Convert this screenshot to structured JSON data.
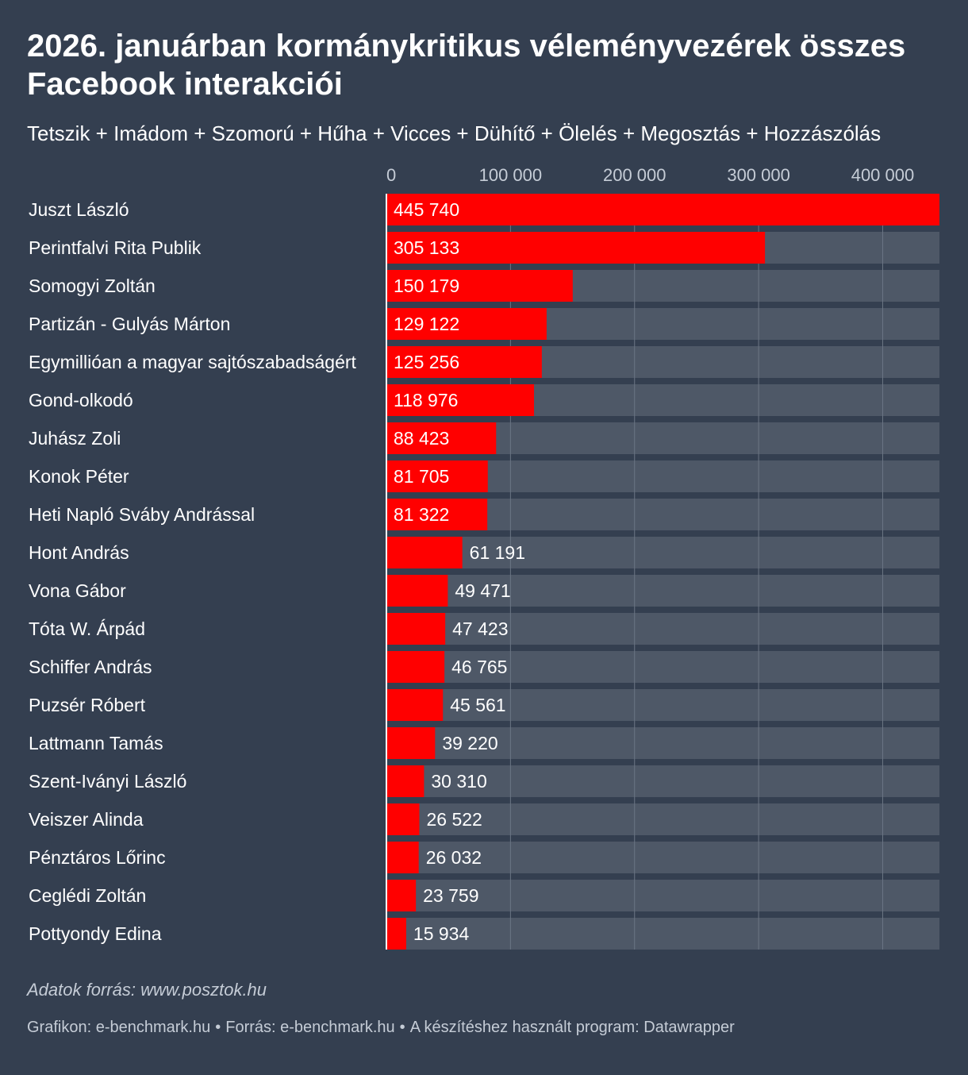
{
  "header": {
    "title": "2026. januárban kormánykritikus véleményvezérek összes Facebook interakciói",
    "subtitle": "Tetszik + Imádom + Szomorú + Hűha + Vicces + Dühítő + Ölelés + Megosztás + Hozzászólás"
  },
  "colors": {
    "background": "#343f50",
    "bar": "#ff0000",
    "track": "#4e5867",
    "gridline": "#6b7584",
    "axis_text": "#c5ccd6"
  },
  "chart_data": {
    "type": "bar",
    "orientation": "horizontal",
    "title": "2026. januárban kormánykritikus véleményvezérek összes Facebook interakciói",
    "xlabel": "",
    "ylabel": "",
    "xlim": [
      0,
      445740
    ],
    "ticks": [
      0,
      100000,
      200000,
      300000,
      400000
    ],
    "tick_labels": [
      "0",
      "100 000",
      "200 000",
      "300 000",
      "400 000"
    ],
    "categories": [
      "Juszt László",
      "Perintfalvi Rita Publik",
      "Somogyi Zoltán",
      "Partizán - Gulyás Márton",
      "Egymillióan a magyar sajtószabadságért",
      "Gond-olkodó",
      "Juhász Zoli",
      "Konok Péter",
      "Heti Napló Sváby Andrással",
      "Hont András",
      "Vona Gábor",
      "Tóta W. Árpád",
      "Schiffer András",
      "Puzsér Róbert",
      "Lattmann Tamás",
      "Szent-Iványi László",
      "Veiszer Alinda",
      "Pénztáros Lőrinc",
      "Ceglédi Zoltán",
      "Pottyondy Edina"
    ],
    "values": [
      445740,
      305133,
      150179,
      129122,
      125256,
      118976,
      88423,
      81705,
      81322,
      61191,
      49471,
      47423,
      46765,
      45561,
      39220,
      30310,
      26522,
      26032,
      23759,
      15934
    ],
    "value_labels": [
      "445 740",
      "305 133",
      "150 179",
      "129 122",
      "125 256",
      "118 976",
      "88 423",
      "81 705",
      "81 322",
      "61 191",
      "49 471",
      "47 423",
      "46 765",
      "45 561",
      "39 220",
      "30 310",
      "26 522",
      "26 032",
      "23 759",
      "15 934"
    ]
  },
  "notes": {
    "source_note": "Adatok forrás: www.posztok.hu"
  },
  "footer": {
    "graphic": "Grafikon: e-benchmark.hu",
    "source": "Forrás: e-benchmark.hu",
    "program": "A készítéshez használt program: Datawrapper",
    "separator": "•"
  }
}
